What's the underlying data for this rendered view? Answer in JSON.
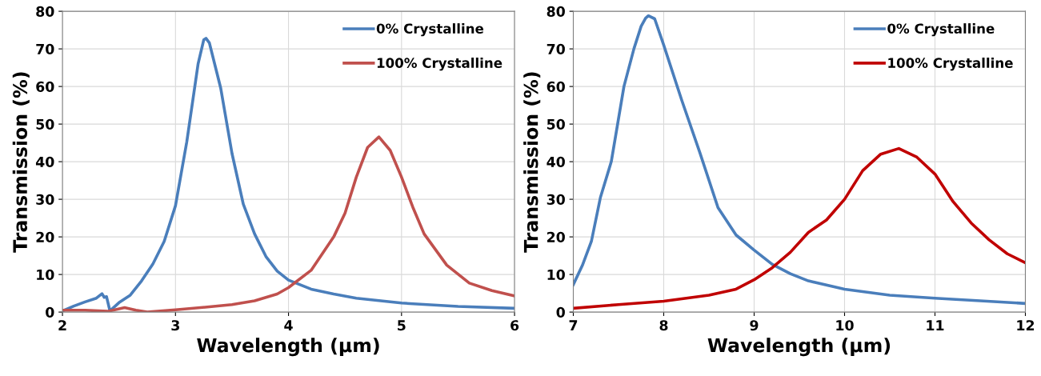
{
  "chart_data": [
    {
      "type": "line",
      "xlabel": "Wavelength (µm)",
      "ylabel": "Transmission (%)",
      "xlim": [
        2,
        6
      ],
      "ylim": [
        0,
        80
      ],
      "xticks": [
        2,
        3,
        4,
        5,
        6
      ],
      "yticks": [
        0,
        10,
        20,
        30,
        40,
        50,
        60,
        70,
        80
      ],
      "grid": true,
      "legend": "top right",
      "marker": "none",
      "line_style": "solid",
      "series": [
        {
          "name": "0% Crystalline",
          "color": "#4a7ebb",
          "x": [
            2.0,
            2.1,
            2.2,
            2.3,
            2.35,
            2.37,
            2.39,
            2.42,
            2.5,
            2.6,
            2.7,
            2.8,
            2.9,
            3.0,
            3.1,
            3.2,
            3.25,
            3.27,
            3.3,
            3.4,
            3.5,
            3.6,
            3.7,
            3.8,
            3.9,
            4.0,
            4.2,
            4.4,
            4.6,
            5.0,
            5.5,
            6.0
          ],
          "values": [
            0.3,
            1.6,
            2.7,
            3.7,
            4.9,
            3.9,
            4.1,
            0.3,
            2.5,
            4.5,
            8.3,
            12.8,
            18.8,
            28.3,
            45.3,
            66,
            72.4,
            72.8,
            71.6,
            59.6,
            42.2,
            28.7,
            20.8,
            14.8,
            10.9,
            8.5,
            6.1,
            4.8,
            3.7,
            2.4,
            1.5,
            1.0
          ]
        },
        {
          "name": "100% Crystalline",
          "color": "#c0504d",
          "x": [
            2.0,
            2.2,
            2.4,
            2.55,
            2.65,
            2.75,
            3.0,
            3.3,
            3.5,
            3.7,
            3.9,
            4.0,
            4.2,
            4.4,
            4.5,
            4.6,
            4.7,
            4.8,
            4.9,
            5.0,
            5.1,
            5.2,
            5.4,
            5.6,
            5.8,
            6.0
          ],
          "values": [
            0.5,
            0.5,
            0.2,
            1.2,
            0.5,
            0,
            0.6,
            1.4,
            2,
            3,
            4.8,
            6.5,
            11.1,
            20,
            26.3,
            35.9,
            43.8,
            46.6,
            43,
            35.9,
            27.9,
            20.8,
            12.5,
            7.7,
            5.7,
            4.3
          ]
        }
      ]
    },
    {
      "type": "line",
      "xlabel": "Wavelength (µm)",
      "ylabel": "Transmission (%)",
      "xlim": [
        7,
        12
      ],
      "ylim": [
        0,
        80
      ],
      "xticks": [
        7,
        8,
        9,
        10,
        11,
        12
      ],
      "yticks": [
        0,
        10,
        20,
        30,
        40,
        50,
        60,
        70,
        80
      ],
      "grid": true,
      "legend": "top right",
      "marker": "none",
      "line_style": "solid",
      "series": [
        {
          "name": "0% Crystalline",
          "color": "#4a7ebb",
          "x": [
            7.0,
            7.1,
            7.2,
            7.3,
            7.42,
            7.49,
            7.56,
            7.67,
            7.75,
            7.8,
            7.83,
            7.9,
            8.0,
            8.2,
            8.4,
            8.6,
            8.8,
            9.0,
            9.2,
            9.4,
            9.6,
            10.0,
            10.5,
            11.0,
            11.5,
            12.0
          ],
          "values": [
            7.3,
            12.4,
            18.8,
            30.5,
            40,
            50,
            60,
            70,
            76,
            78.2,
            78.8,
            78,
            71,
            56.3,
            42.4,
            27.8,
            20.5,
            16.5,
            12.7,
            10.2,
            8.3,
            6.1,
            4.5,
            3.7,
            3,
            2.3
          ]
        },
        {
          "name": "100% Crystalline",
          "color": "#c00000",
          "x": [
            7.0,
            7.5,
            8.0,
            8.5,
            8.8,
            9.0,
            9.2,
            9.4,
            9.6,
            9.8,
            10.0,
            10.2,
            10.4,
            10.6,
            10.8,
            11.0,
            11.2,
            11.4,
            11.6,
            11.8,
            12.0
          ],
          "values": [
            1,
            2,
            2.9,
            4.5,
            6.1,
            8.6,
            11.8,
            15.9,
            21.2,
            24.5,
            30,
            37.6,
            42,
            43.5,
            41.2,
            36.7,
            29.4,
            23.7,
            19.2,
            15.5,
            13.1
          ]
        }
      ]
    }
  ]
}
